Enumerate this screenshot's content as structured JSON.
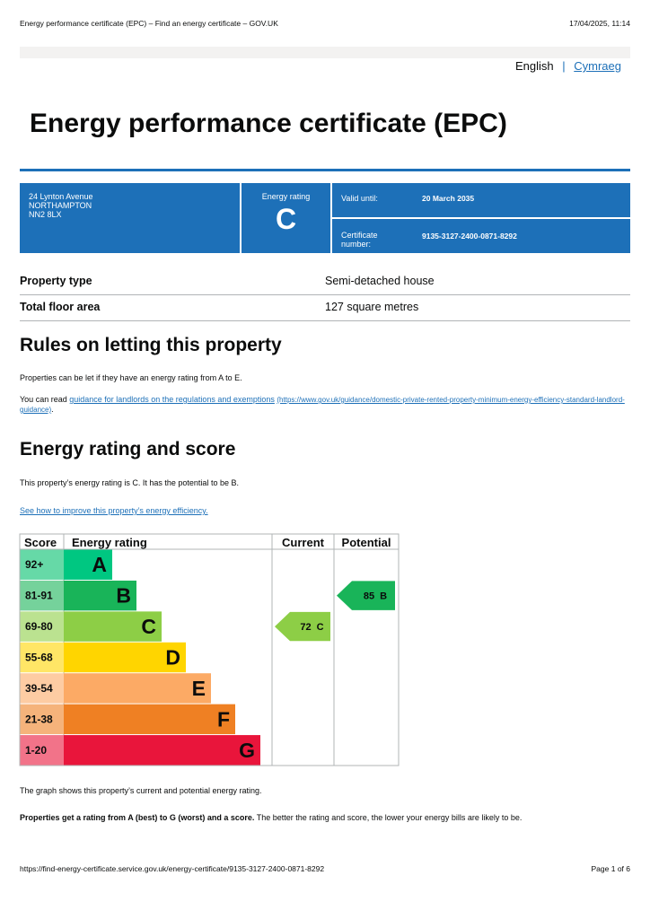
{
  "browser_header": {
    "title": "Energy performance certificate (EPC) – Find an energy certificate – GOV.UK",
    "datetime": "17/04/2025, 11:14"
  },
  "language": {
    "current": "English",
    "separator": "|",
    "other": "Cymraeg"
  },
  "title": "Energy performance certificate (EPC)",
  "summary": {
    "address": [
      "24 Lynton Avenue",
      "NORTHAMPTON",
      "NN2 8LX"
    ],
    "rating_label": "Energy rating",
    "rating": "C",
    "valid_until_label": "Valid until:",
    "valid_until": "20 March 2035",
    "certificate_label": "Certificate number:",
    "certificate_number": "9135-3127-2400-0871-8292"
  },
  "property": {
    "rows": [
      [
        "Property type",
        "Semi-detached house"
      ],
      [
        "Total floor area",
        "127 square metres"
      ]
    ]
  },
  "letting": {
    "heading": "Rules on letting this property",
    "para1": "Properties can be let if they have an energy rating from A to E.",
    "para2_prefix": "You can read ",
    "link": "guidance for landlords on the regulations and exemptions",
    "link_url": "(https://www.gov.uk/guidance/domestic-private-rented-property-minimum-energy-efficiency-standard-landlord-guidance)",
    "para2_suffix": "."
  },
  "rating_section": {
    "heading": "Energy rating and score",
    "para": "This property’s energy rating is C. It has the potential to be B.",
    "link": "See how to improve this property’s energy efficiency."
  },
  "epc_chart": {
    "headers": [
      "Score",
      "Energy rating",
      "Current",
      "Potential"
    ],
    "bands": [
      {
        "score": "92+",
        "letter": "A",
        "color": "#00c781",
        "light": "#66d9a7"
      },
      {
        "score": "81-91",
        "letter": "B",
        "color": "#19b459",
        "light": "#75d29b"
      },
      {
        "score": "69-80",
        "letter": "C",
        "color": "#8dce46",
        "light": "#bbe290"
      },
      {
        "score": "55-68",
        "letter": "D",
        "color": "#ffd500",
        "light": "#ffe666"
      },
      {
        "score": "39-54",
        "letter": "E",
        "color": "#fcaa65",
        "light": "#fdcca3"
      },
      {
        "score": "21-38",
        "letter": "F",
        "color": "#ef8023",
        "light": "#f5b37b"
      },
      {
        "score": "1-20",
        "letter": "G",
        "color": "#e9153b",
        "light": "#f27389"
      }
    ],
    "current": {
      "score": 72,
      "letter": "C"
    },
    "potential": {
      "score": 85,
      "letter": "B"
    }
  },
  "notes": {
    "graph": "The graph shows this property’s current and potential energy rating.",
    "bold": "Properties get a rating from A (best) to G (worst) and a score.",
    "rest": " The better the rating and score, the lower your energy bills are likely to be."
  },
  "footer": {
    "url": "https://find-energy-certificate.service.gov.uk/energy-certificate/9135-3127-2400-0871-8292",
    "page": "Page 1 of 6"
  }
}
